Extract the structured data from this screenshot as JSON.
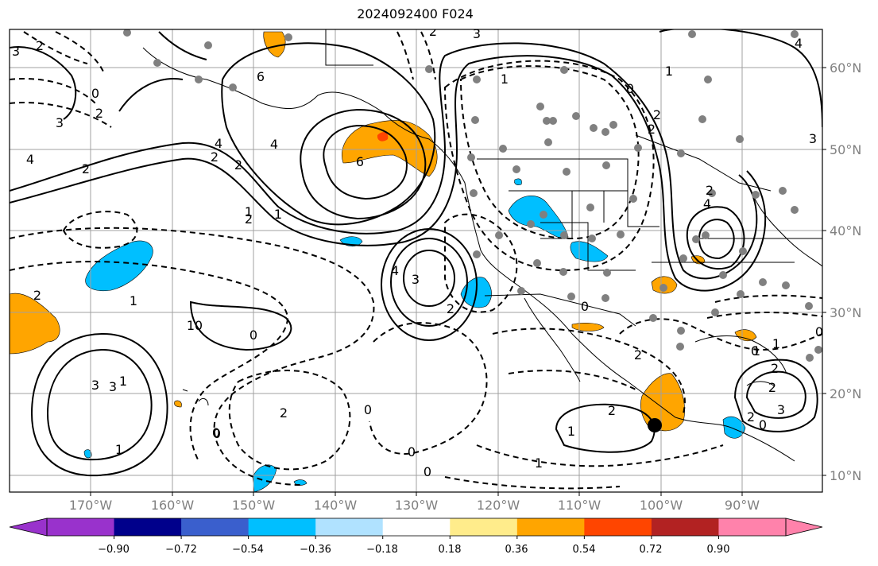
{
  "title": "2024092400 F024",
  "lat_labels": [
    "60°N",
    "50°N",
    "40°N",
    "30°N",
    "20°N",
    "10°N"
  ],
  "lon_labels": [
    "170°W",
    "160°W",
    "150°W",
    "140°W",
    "130°W",
    "120°W",
    "110°W",
    "100°W",
    "90°W"
  ],
  "colorbar": {
    "ticks": [
      "−0.90",
      "−0.72",
      "−0.54",
      "−0.36",
      "−0.18",
      "0.18",
      "0.36",
      "0.54",
      "0.72",
      "0.90"
    ],
    "colors": [
      "#9932cc",
      "#00008b",
      "#3a5fcd",
      "#00bfff",
      "#b0e2ff",
      "#ffffff",
      "#ffec8b",
      "#ffa500",
      "#ff4500",
      "#b22222",
      "#ff82ab"
    ]
  },
  "contour_labels": [
    "2",
    "3",
    "1",
    "2",
    "0",
    "3",
    "2",
    "4",
    "2",
    "4",
    "6",
    "2",
    "2",
    "1",
    "3",
    "4",
    "6",
    "1",
    "0",
    "4",
    "2",
    "2",
    "3",
    "4",
    "2",
    "1",
    "2",
    "3",
    "4",
    "0",
    "0",
    "2",
    "0",
    "1",
    "2",
    "1",
    "0",
    "2",
    "0",
    "2",
    "3",
    "2",
    "1",
    "2",
    "1",
    "0",
    "0",
    "3",
    "1",
    "0",
    "0",
    "1",
    "1",
    "0",
    "2",
    "0",
    "2",
    "1",
    "3"
  ],
  "map_features": {
    "land": "North America coastline, Hawaii, Alaska, Mexico, Central America",
    "gridlines": "10-degree graticule"
  },
  "stations": 40
}
